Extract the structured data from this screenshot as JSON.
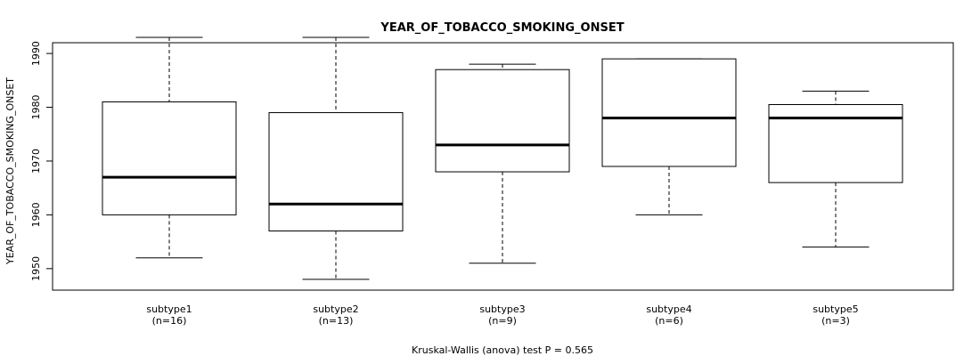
{
  "chart_data": {
    "type": "box",
    "title": "YEAR_OF_TOBACCO_SMOKING_ONSET",
    "ylabel": "YEAR_OF_TOBACCO_SMOKING_ONSET",
    "xlabel": "Kruskal-Wallis (anova) test P = 0.565",
    "ylim": [
      1946,
      1992
    ],
    "yticks": [
      1950,
      1960,
      1970,
      1980,
      1990
    ],
    "groups": [
      {
        "name": "subtype1",
        "n_label": "(n=16)",
        "min": 1952,
        "q1": 1960,
        "median": 1967,
        "q3": 1981,
        "max": 1993
      },
      {
        "name": "subtype2",
        "n_label": "(n=13)",
        "min": 1948,
        "q1": 1957,
        "median": 1962,
        "q3": 1979,
        "max": 1993
      },
      {
        "name": "subtype3",
        "n_label": "(n=9)",
        "min": 1951,
        "q1": 1968,
        "median": 1973,
        "q3": 1987,
        "max": 1988
      },
      {
        "name": "subtype4",
        "n_label": "(n=6)",
        "min": 1960,
        "q1": 1969,
        "median": 1978,
        "q3": 1989,
        "max": 1989
      },
      {
        "name": "subtype5",
        "n_label": "(n=3)",
        "min": 1954,
        "q1": 1966,
        "median": 1978,
        "q3": 1980.5,
        "max": 1983
      }
    ]
  }
}
